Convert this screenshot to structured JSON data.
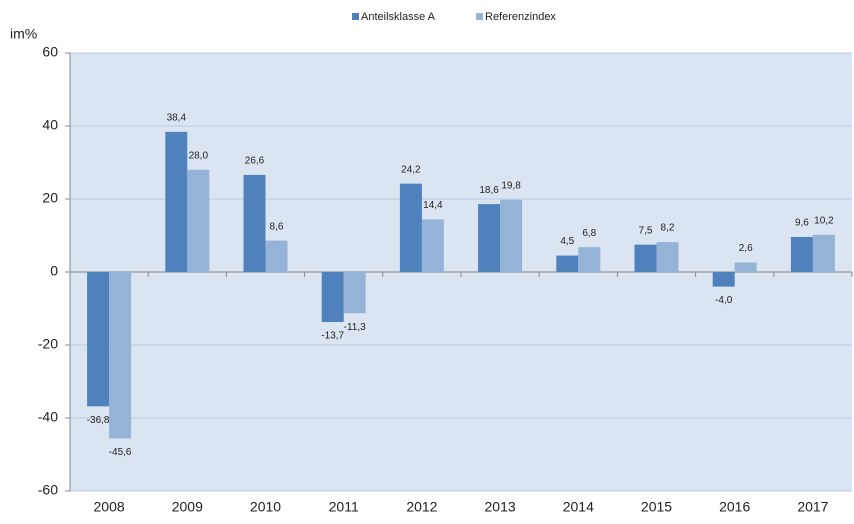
{
  "chart_data": {
    "type": "bar",
    "y_axis_label": "im%",
    "categories": [
      "2008",
      "2009",
      "2010",
      "2011",
      "2012",
      "2013",
      "2014",
      "2015",
      "2016",
      "2017"
    ],
    "series": [
      {
        "name": "Anteilsklasse A",
        "color": "#4f81bd",
        "values": [
          -36.8,
          38.4,
          26.6,
          -13.7,
          24.2,
          18.6,
          4.5,
          7.5,
          -4.0,
          9.6
        ],
        "value_labels": [
          "-36,8",
          "38,4",
          "26,6",
          "-13,7",
          "24,2",
          "18,6",
          "4,5",
          "7,5",
          "-4,0",
          "9,6"
        ]
      },
      {
        "name": "Referenzindex",
        "color": "#95b3d7",
        "values": [
          -45.6,
          28.0,
          8.6,
          -11.3,
          14.4,
          19.8,
          6.8,
          8.2,
          2.6,
          10.2
        ],
        "value_labels": [
          "-45,6",
          "28,0",
          "8,6",
          "-11,3",
          "14,4",
          "19,8",
          "6,8",
          "8,2",
          "2,6",
          "10,2"
        ]
      }
    ],
    "ylim": [
      -60,
      60
    ],
    "yticks": [
      -60,
      -40,
      -20,
      0,
      20,
      40,
      60
    ],
    "grid": true,
    "legend": "top"
  }
}
